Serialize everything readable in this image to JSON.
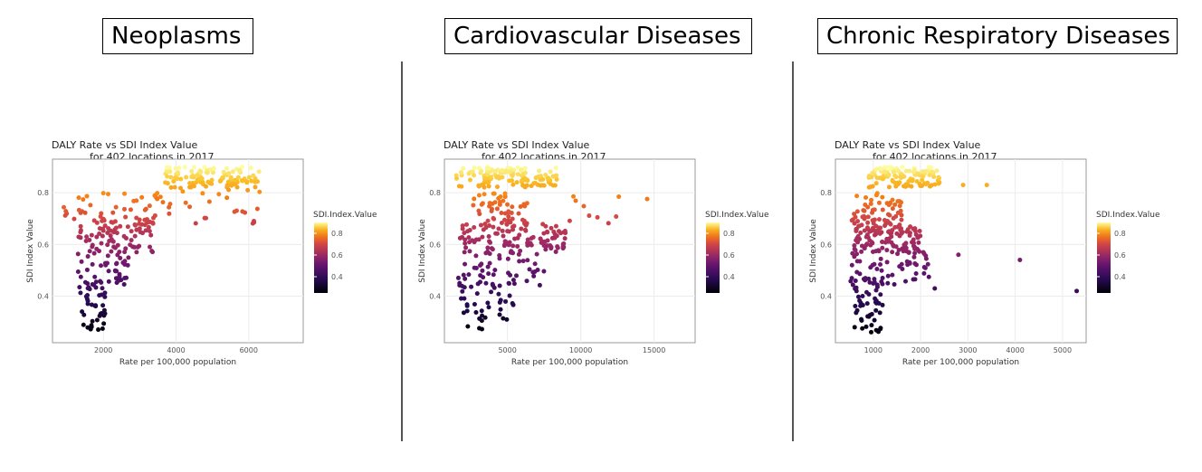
{
  "panels": [
    {
      "title": "Neoplasms"
    },
    {
      "title": "Cardiovascular Diseases"
    },
    {
      "title": "Chronic Respiratory Diseases"
    }
  ],
  "chart_data": [
    {
      "type": "scatter",
      "title": "DALY Rate vs SDI Index Value",
      "subtitle": "for 402 locations in 2017",
      "xlabel": "Rate per 100,000 population",
      "ylabel": "SDI Index Value",
      "xlim": [
        600,
        7500
      ],
      "ylim": [
        0.22,
        0.93
      ],
      "xticks": [
        2000,
        4000,
        6000
      ],
      "yticks": [
        0.4,
        0.6,
        0.8
      ],
      "color_by": "SDI.Index.Value",
      "legend": {
        "title": "SDI.Index.Value",
        "ticks": [
          0.4,
          0.6,
          0.8
        ],
        "position": "right"
      },
      "grid": true,
      "clusters": [
        {
          "x": [
            3700,
            6300
          ],
          "y": [
            0.82,
            0.9
          ],
          "n": 110
        },
        {
          "x": [
            900,
            3500
          ],
          "y": [
            0.68,
            0.8
          ],
          "n": 40
        },
        {
          "x": [
            1300,
            3400
          ],
          "y": [
            0.57,
            0.7
          ],
          "n": 80
        },
        {
          "x": [
            3200,
            6500
          ],
          "y": [
            0.68,
            0.82
          ],
          "n": 30
        },
        {
          "x": [
            1300,
            2700
          ],
          "y": [
            0.44,
            0.57
          ],
          "n": 40
        },
        {
          "x": [
            1300,
            2100
          ],
          "y": [
            0.36,
            0.46
          ],
          "n": 25
        },
        {
          "x": [
            1400,
            2200
          ],
          "y": [
            0.26,
            0.35
          ],
          "n": 18
        }
      ]
    },
    {
      "type": "scatter",
      "title": "DALY Rate vs SDI Index Value",
      "subtitle": "for 402 locations in 2017",
      "xlabel": "Rate per 100,000 population",
      "ylabel": "SDI Index Value",
      "xlim": [
        700,
        17800
      ],
      "ylim": [
        0.22,
        0.93
      ],
      "xticks": [
        5000,
        10000,
        15000
      ],
      "yticks": [
        0.4,
        0.6,
        0.8
      ],
      "color_by": "SDI.Index.Value",
      "legend": {
        "title": "SDI.Index.Value",
        "ticks": [
          0.4,
          0.6,
          0.8
        ],
        "position": "right"
      },
      "grid": true,
      "clusters": [
        {
          "x": [
            1500,
            8500
          ],
          "y": [
            0.82,
            0.9
          ],
          "n": 120
        },
        {
          "x": [
            2500,
            6500
          ],
          "y": [
            0.68,
            0.8
          ],
          "n": 50
        },
        {
          "x": [
            1700,
            9000
          ],
          "y": [
            0.57,
            0.68
          ],
          "n": 110
        },
        {
          "x": [
            1500,
            7500
          ],
          "y": [
            0.44,
            0.57
          ],
          "n": 50
        },
        {
          "x": [
            1700,
            5500
          ],
          "y": [
            0.35,
            0.45
          ],
          "n": 25
        },
        {
          "x": [
            1800,
            5000
          ],
          "y": [
            0.27,
            0.35
          ],
          "n": 15
        },
        {
          "x": [
            9000,
            17000
          ],
          "y": [
            0.68,
            0.8
          ],
          "n": 10
        }
      ]
    },
    {
      "type": "scatter",
      "title": "DALY Rate vs SDI Index Value",
      "subtitle": "for 402 locations in 2017",
      "xlabel": "Rate per 100,000 population",
      "ylabel": "SDI Index Value",
      "xlim": [
        200,
        5500
      ],
      "ylim": [
        0.22,
        0.93
      ],
      "xticks": [
        1000,
        2000,
        3000,
        4000,
        5000
      ],
      "yticks": [
        0.4,
        0.6,
        0.8
      ],
      "color_by": "SDI.Index.Value",
      "legend": {
        "title": "SDI.Index.Value",
        "ticks": [
          0.4,
          0.6,
          0.8
        ],
        "position": "right"
      },
      "grid": true,
      "clusters": [
        {
          "x": [
            900,
            2400
          ],
          "y": [
            0.82,
            0.9
          ],
          "n": 110
        },
        {
          "x": [
            500,
            1600
          ],
          "y": [
            0.68,
            0.8
          ],
          "n": 55
        },
        {
          "x": [
            500,
            2000
          ],
          "y": [
            0.57,
            0.68
          ],
          "n": 110
        },
        {
          "x": [
            500,
            2200
          ],
          "y": [
            0.44,
            0.57
          ],
          "n": 60
        },
        {
          "x": [
            600,
            1200
          ],
          "y": [
            0.36,
            0.45
          ],
          "n": 25
        },
        {
          "x": [
            600,
            1200
          ],
          "y": [
            0.26,
            0.35
          ],
          "n": 20
        }
      ],
      "outliers": [
        {
          "x": 3400,
          "y": 0.83
        },
        {
          "x": 2900,
          "y": 0.83
        },
        {
          "x": 4100,
          "y": 0.54
        },
        {
          "x": 5300,
          "y": 0.42
        },
        {
          "x": 2800,
          "y": 0.56
        },
        {
          "x": 2300,
          "y": 0.43
        }
      ]
    }
  ]
}
